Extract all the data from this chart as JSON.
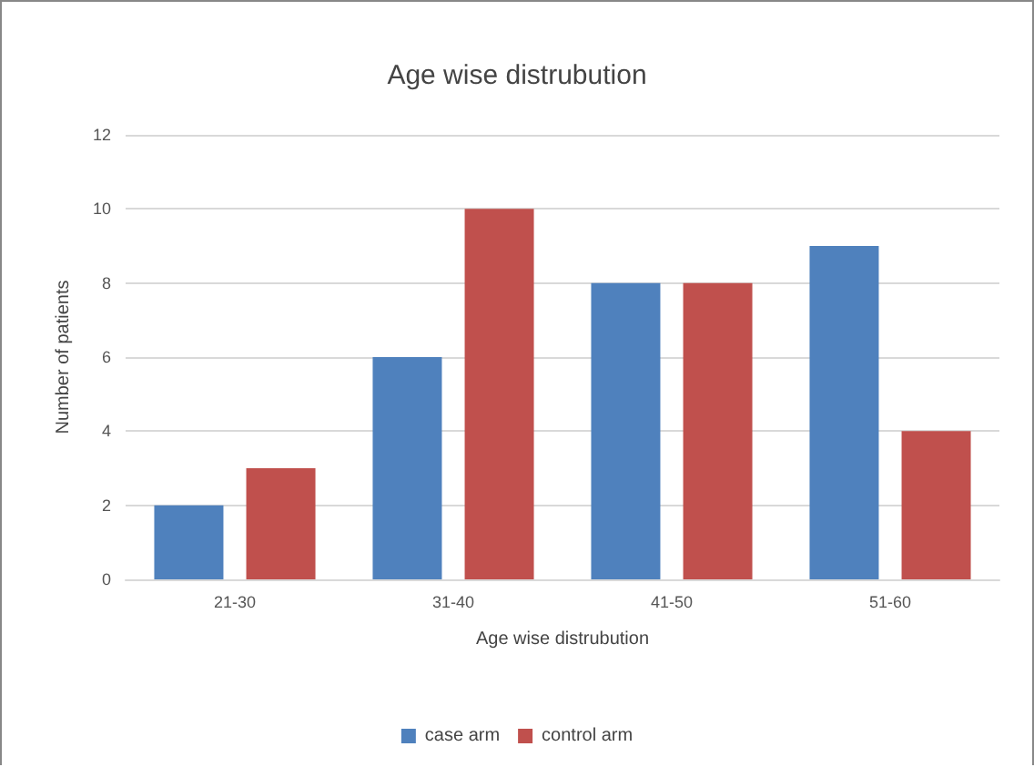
{
  "chart_data": {
    "type": "bar",
    "title": "Age wise distrubution",
    "xlabel": "Age wise distrubution",
    "ylabel": "Number of patients",
    "categories": [
      "21-30",
      "31-40",
      "41-50",
      "51-60"
    ],
    "series": [
      {
        "name": "case arm",
        "color": "#4f81bd",
        "values": [
          2,
          6,
          8,
          9
        ]
      },
      {
        "name": "control arm",
        "color": "#c0504d",
        "values": [
          3,
          10,
          8,
          4
        ]
      }
    ],
    "ylim": [
      0,
      12
    ],
    "yticks": [
      0,
      2,
      4,
      6,
      8,
      10,
      12
    ],
    "grid": "y",
    "legend": "bottom"
  }
}
